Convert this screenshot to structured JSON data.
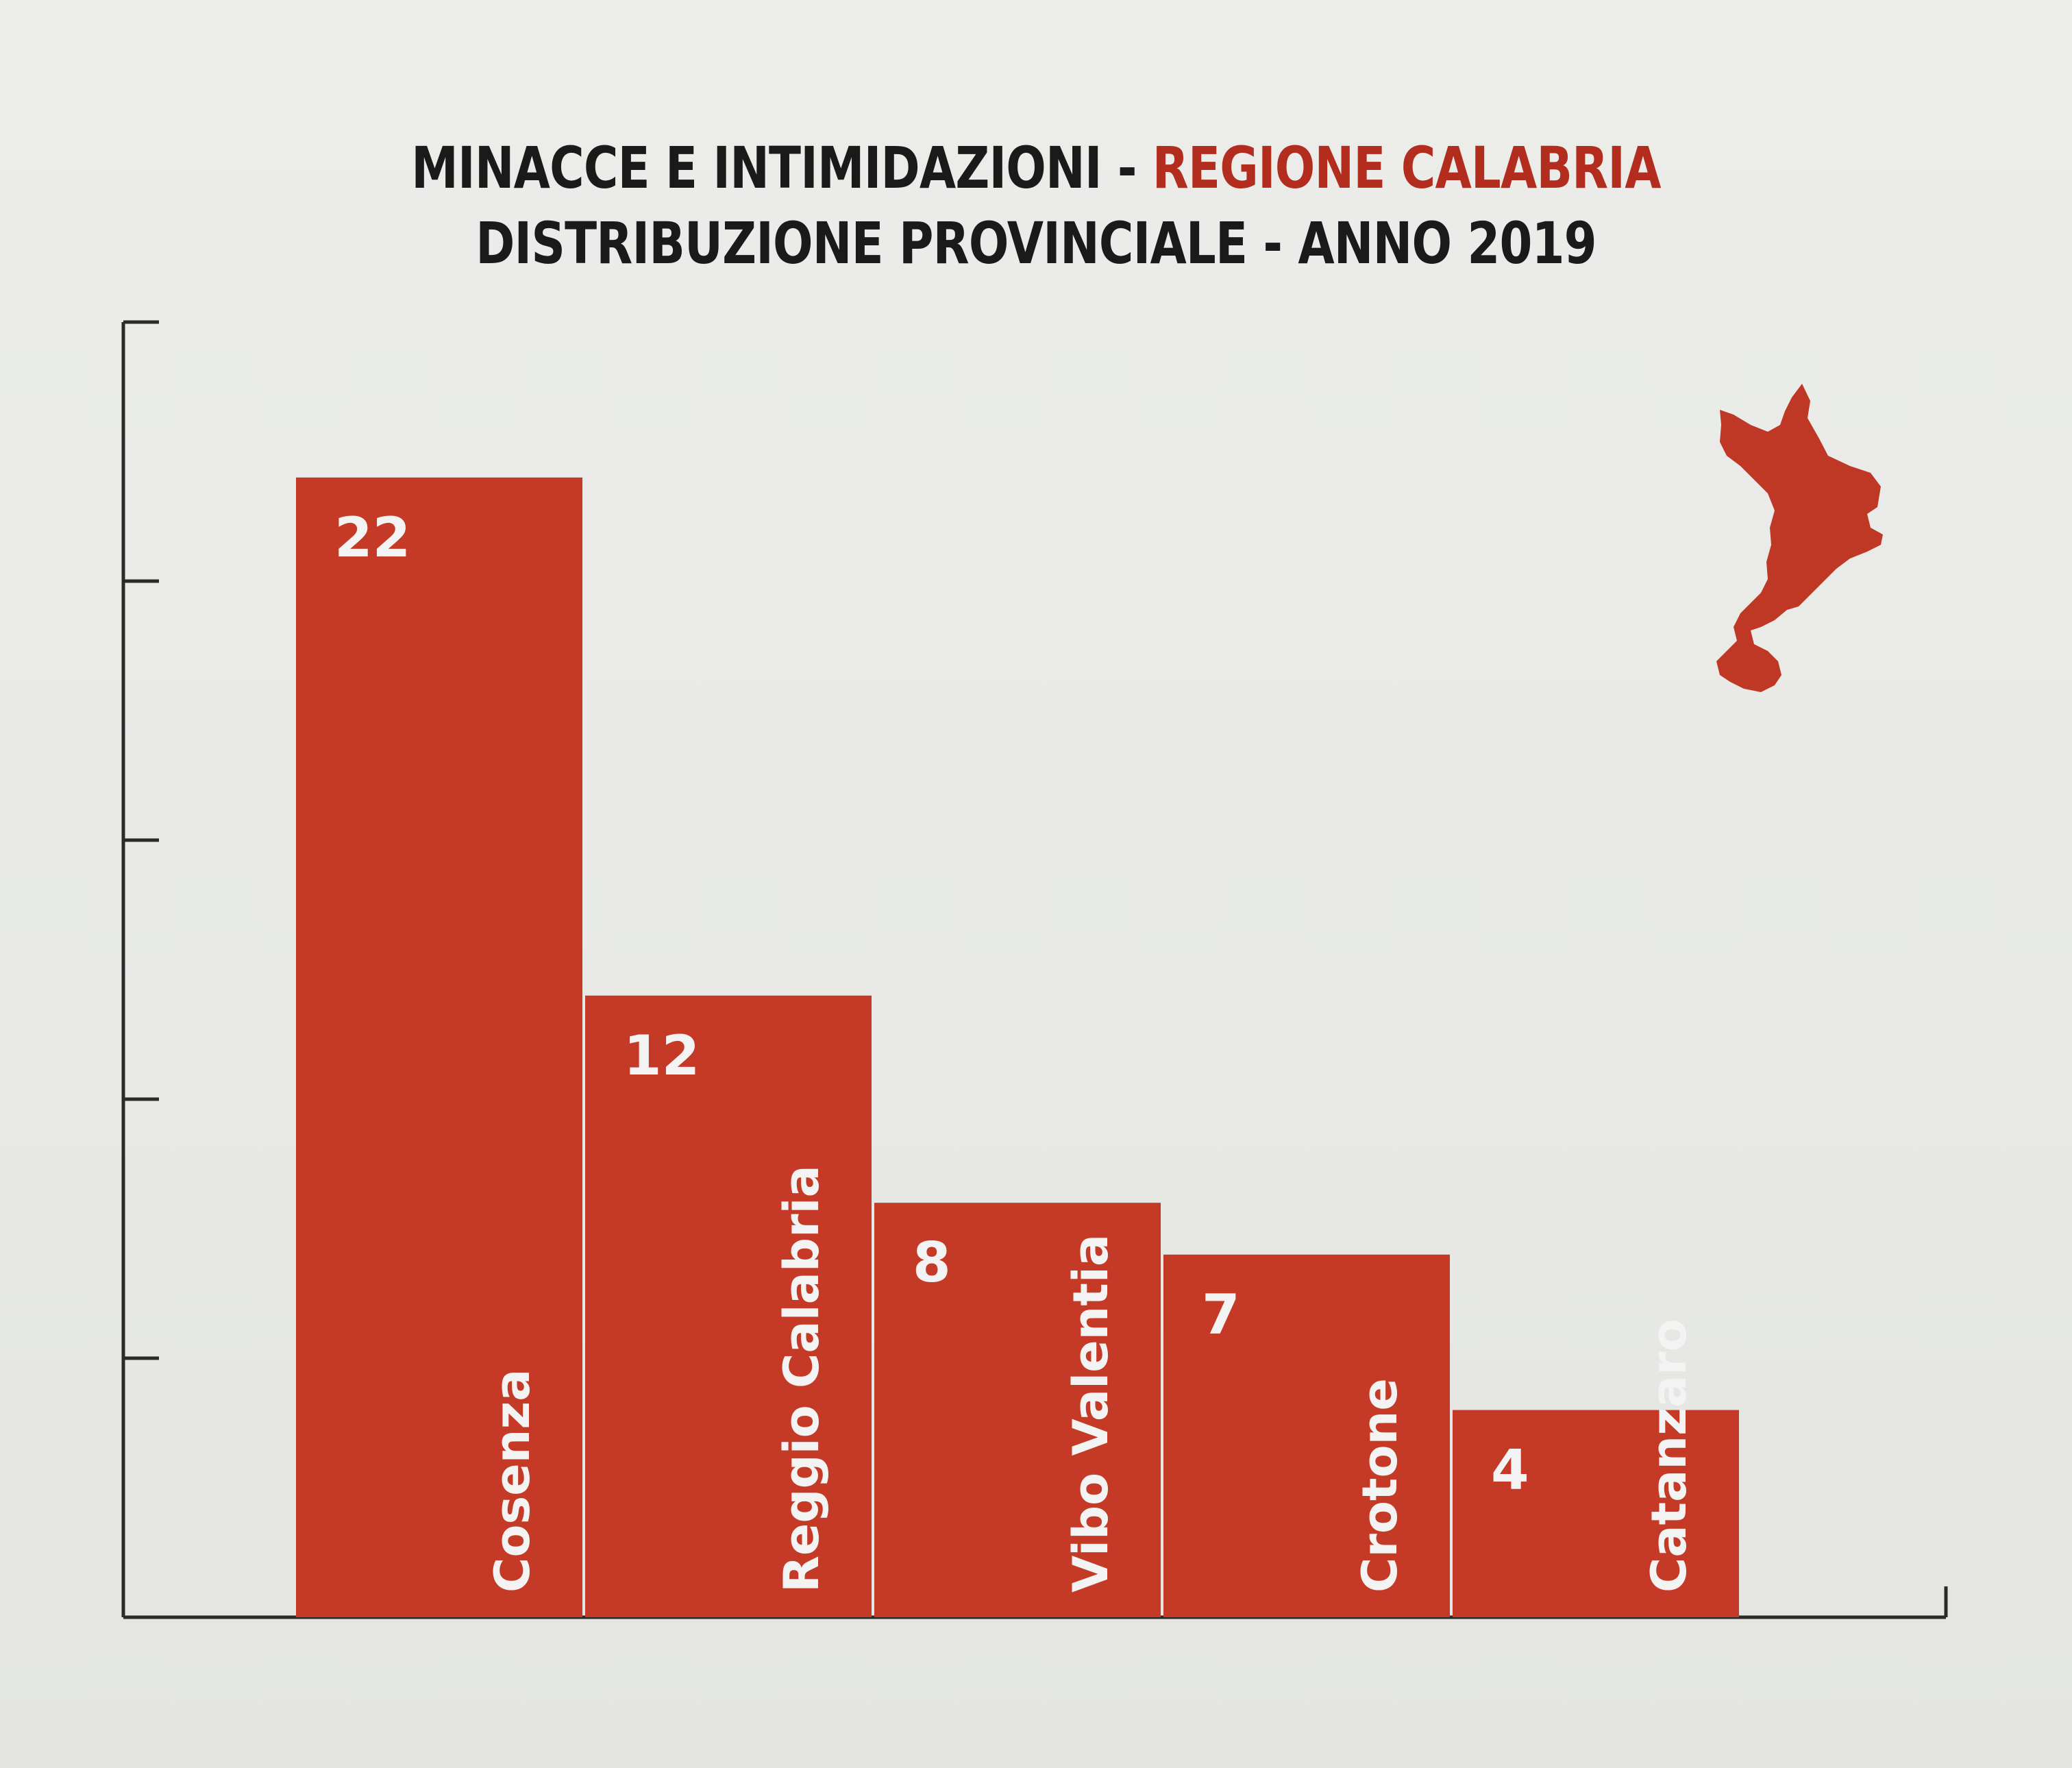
{
  "chart_data": {
    "type": "bar",
    "title_line1_dark": "MINACCE E INTIMIDAZIONI -",
    "title_line1_accent": "REGIONE CALABRIA",
    "title_line2": "DISTRIBUZIONE PROVINCIALE - ANNO 2019",
    "categories": [
      "Cosenza",
      "Reggio Calabria",
      "Vibo Valentia",
      "Crotone",
      "Catanzaro"
    ],
    "values": [
      22,
      12,
      8,
      7,
      4
    ],
    "value_labels": [
      "22",
      "12",
      "8",
      "7",
      "4"
    ],
    "xlabel": "",
    "ylabel": "",
    "ylim": [
      0,
      25
    ],
    "yticks": [
      0,
      5,
      10,
      15,
      20,
      25
    ],
    "show_ytick_labels": false,
    "legend": "none",
    "grid": false,
    "bar_color": "#c43a26",
    "accent_color": "#b32d1f",
    "decoration": "calabria-region-map"
  }
}
